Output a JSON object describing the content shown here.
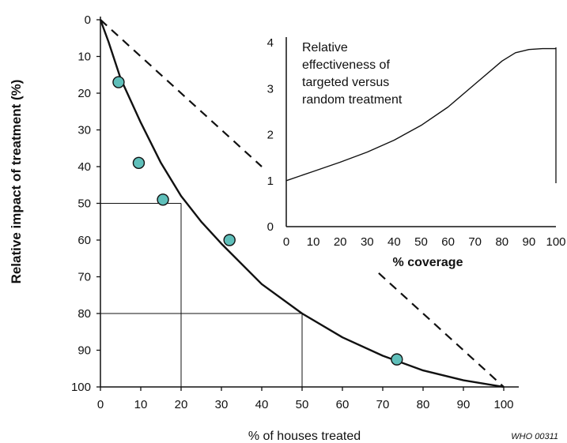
{
  "credit": "WHO 00311",
  "chart_data": [
    {
      "type": "scatter",
      "xlabel": "% of houses treated",
      "ylabel": "Relative impact of treatment (%)",
      "xlim": [
        0,
        100
      ],
      "ylim": [
        0,
        100
      ],
      "y_inverted": true,
      "x_ticks": [
        "0",
        "10",
        "20",
        "30",
        "40",
        "50",
        "60",
        "70",
        "80",
        "90",
        "100"
      ],
      "y_ticks": [
        "0",
        "10",
        "20",
        "30",
        "40",
        "50",
        "60",
        "70",
        "80",
        "90",
        "100"
      ],
      "points": [
        {
          "x": 4.5,
          "y": 17
        },
        {
          "x": 9.5,
          "y": 39
        },
        {
          "x": 15.5,
          "y": 49
        },
        {
          "x": 32,
          "y": 60
        },
        {
          "x": 73.5,
          "y": 92.5
        }
      ],
      "fitted_curve": [
        {
          "x": 0,
          "y": 0
        },
        {
          "x": 2,
          "y": 6
        },
        {
          "x": 5,
          "y": 16
        },
        {
          "x": 10,
          "y": 28
        },
        {
          "x": 15,
          "y": 39
        },
        {
          "x": 20,
          "y": 48
        },
        {
          "x": 25,
          "y": 55
        },
        {
          "x": 30,
          "y": 61
        },
        {
          "x": 40,
          "y": 72
        },
        {
          "x": 50,
          "y": 80
        },
        {
          "x": 60,
          "y": 86.5
        },
        {
          "x": 70,
          "y": 91.5
        },
        {
          "x": 80,
          "y": 95.5
        },
        {
          "x": 90,
          "y": 98.2
        },
        {
          "x": 100,
          "y": 100
        }
      ],
      "random_treatment_line": [
        {
          "x": 0,
          "y": 0
        },
        {
          "x": 100,
          "y": 100
        }
      ],
      "reference_lines": [
        {
          "x": 20,
          "y": 50
        },
        {
          "x": 50,
          "y": 80
        }
      ]
    },
    {
      "type": "line",
      "title": "Relative effectiveness of targeted versus random treatment",
      "title_lines": [
        "Relative",
        "effectiveness of",
        "targeted versus",
        "random treatment"
      ],
      "xlabel": "% coverage",
      "xlim": [
        0,
        100
      ],
      "ylim": [
        0,
        4
      ],
      "x_ticks": [
        "0",
        "10",
        "20",
        "30",
        "40",
        "50",
        "60",
        "70",
        "80",
        "90",
        "100"
      ],
      "y_ticks": [
        "0",
        "1",
        "2",
        "3",
        "4"
      ],
      "series": [
        {
          "x": [
            0,
            10,
            20,
            30,
            40,
            50,
            60,
            70,
            80,
            85,
            90,
            95,
            100
          ],
          "values": [
            1.0,
            1.2,
            1.4,
            1.62,
            1.88,
            2.2,
            2.6,
            3.1,
            3.6,
            3.78,
            3.85,
            3.87,
            3.87
          ]
        }
      ]
    }
  ]
}
